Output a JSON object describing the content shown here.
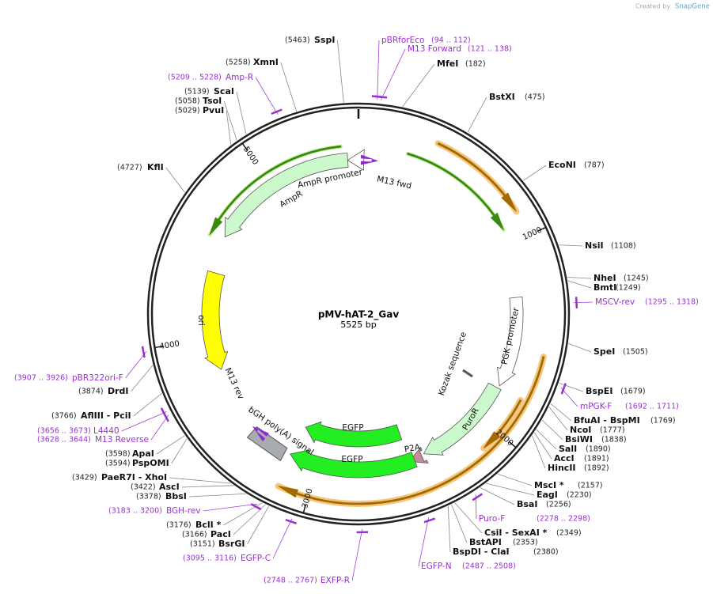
{
  "credit": {
    "prefix": "Created by",
    "brand": "SnapGene"
  },
  "map": {
    "name": "pMV-hAT-2_Gav",
    "length": "5525 bp",
    "ticks": [
      "1000",
      "2000",
      "3000",
      "4000",
      "5000"
    ]
  },
  "features": [
    "AmpR",
    "AmpR promoter",
    "M13 fwd",
    "ori",
    "M13 rev",
    "bGH poly(A) signal",
    "EGFP",
    "EGFP",
    "P2A",
    "PuroR",
    "Kozak sequence",
    "PGK promoter"
  ],
  "sites": [
    {
      "name": "SspI",
      "position": "(5463)"
    },
    {
      "name": "XmnI",
      "position": "(5258)"
    },
    {
      "name": "ScaI",
      "position": "(5139)"
    },
    {
      "name": "TsoI",
      "position": "(5058)"
    },
    {
      "name": "PvuI",
      "position": "(5029)"
    },
    {
      "name": "KflI",
      "position": "(4727)"
    },
    {
      "name": "DrdI",
      "position": "(3874)"
    },
    {
      "name": "AflIII  - PciI",
      "position": "(3766)"
    },
    {
      "name": "ApaI",
      "position": "(3598)"
    },
    {
      "name": "PspOMI",
      "position": "(3594)"
    },
    {
      "name": "PaeR7I  - XhoI",
      "position": "(3429)"
    },
    {
      "name": "AscI",
      "position": "(3422)"
    },
    {
      "name": "BbsI",
      "position": "(3378)"
    },
    {
      "name": "BclI *",
      "position": "(3176)"
    },
    {
      "name": "PacI",
      "position": "(3166)"
    },
    {
      "name": "BsrGI",
      "position": "(3151)"
    },
    {
      "name": "MfeI",
      "position": "(182)"
    },
    {
      "name": "BstXI",
      "position": "(475)"
    },
    {
      "name": "EcoNI",
      "position": "(787)"
    },
    {
      "name": "NsiI",
      "position": "(1108)"
    },
    {
      "name": "NheI",
      "position": "(1245)"
    },
    {
      "name": "BmtI",
      "position": "(1249)"
    },
    {
      "name": "SpeI",
      "position": "(1505)"
    },
    {
      "name": "BspEI",
      "position": "(1679)"
    },
    {
      "name": "BfuAI  - BspMI",
      "position": "(1769)"
    },
    {
      "name": "NcoI",
      "position": "(1777)"
    },
    {
      "name": "BsiWI",
      "position": "(1838)"
    },
    {
      "name": "SalI",
      "position": "(1890)"
    },
    {
      "name": "AccI",
      "position": "(1891)"
    },
    {
      "name": "HincII",
      "position": "(1892)"
    },
    {
      "name": "MscI *",
      "position": "(2157)"
    },
    {
      "name": "EagI",
      "position": "(2230)"
    },
    {
      "name": "BsaI",
      "position": "(2256)"
    },
    {
      "name": "CsiI  - SexAI *",
      "position": "(2349)"
    },
    {
      "name": "BstAPI",
      "position": "(2353)"
    },
    {
      "name": "BspDI  - ClaI",
      "position": "(2380)"
    }
  ],
  "primers": [
    {
      "name": "Amp-R",
      "range": "(5209 .. 5228)"
    },
    {
      "name": "pBR322ori-F",
      "range": "(3907 .. 3926)"
    },
    {
      "name": "L4440",
      "range": "(3656 .. 3673)"
    },
    {
      "name": "M13 Reverse",
      "range": "(3628 .. 3644)"
    },
    {
      "name": "BGH-rev",
      "range": "(3183 .. 3200)"
    },
    {
      "name": "EGFP-C",
      "range": "(3095 .. 3116)"
    },
    {
      "name": "EXFP-R",
      "range": "(2748 .. 2767)"
    },
    {
      "name": "pBRforEco",
      "range": "(94 .. 112)"
    },
    {
      "name": "M13 Forward",
      "range": "(121 .. 138)"
    },
    {
      "name": "MSCV-rev",
      "range": "(1295 .. 1318)"
    },
    {
      "name": "mPGK-F",
      "range": "(1692 .. 1711)"
    },
    {
      "name": "Puro-F",
      "range": "(2278 .. 2298)"
    },
    {
      "name": "EGFP-N",
      "range": "(2487 .. 2508)"
    }
  ]
}
